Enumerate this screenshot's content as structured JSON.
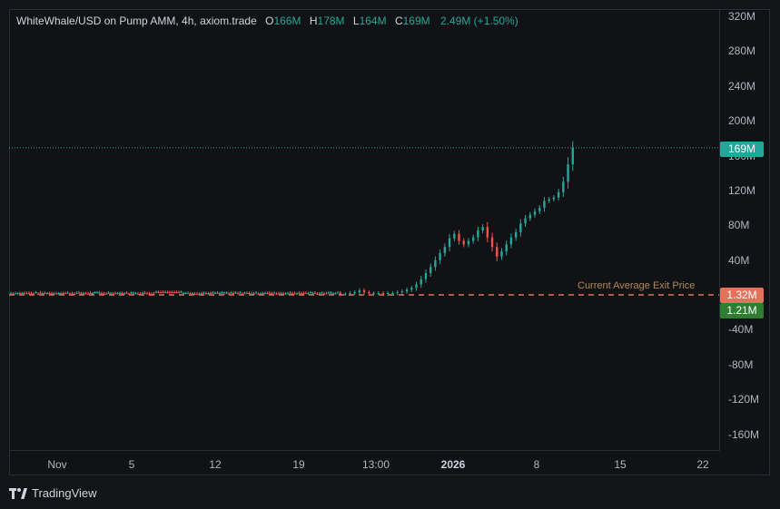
{
  "legend": {
    "symbol": "WhiteWhale/USD on Pump AMM, 4h, axiom.trade",
    "o_key": "O",
    "o_val": "166M",
    "h_key": "H",
    "h_val": "178M",
    "l_key": "L",
    "l_val": "164M",
    "c_key": "C",
    "c_val": "169M",
    "change": "2.49M (+1.50%)"
  },
  "y_axis_ticks": [
    "320M",
    "280M",
    "240M",
    "200M",
    "160M",
    "120M",
    "80M",
    "40M",
    "-40M",
    "-80M",
    "-120M",
    "-160M"
  ],
  "x_axis_ticks": [
    "Nov",
    "5",
    "12",
    "19",
    "13:00",
    "2026",
    "8",
    "15",
    "22"
  ],
  "price_tags": {
    "last": "169M",
    "avg_exit": "1.32M",
    "current": "1.21M"
  },
  "line_labels": {
    "current": "Current",
    "avg_exit": "Average Exit Price"
  },
  "colors": {
    "up": "#26a69a",
    "down": "#ef5350",
    "avg_exit_line": "#e2735a",
    "current_tag": "#2e7d32",
    "last_tag": "#26a69a"
  },
  "brand": "TradingView",
  "chart_data": {
    "type": "candlestick",
    "ylim": [
      -180,
      340
    ],
    "y_unit": "M",
    "last_price": 169,
    "avg_exit_price": 1.32,
    "current_price": 1.21,
    "grid": false,
    "series": [
      {
        "name": "WhiteWhale/USD",
        "closes_by_phase": [
          [
            0,
            1
          ],
          [
            0,
            1
          ],
          [
            0,
            2
          ],
          [
            0,
            3
          ],
          [
            0,
            5
          ],
          [
            0,
            3
          ],
          [
            0,
            2
          ],
          [
            0,
            2
          ],
          [
            0,
            2
          ],
          [
            0,
            1
          ],
          [
            0,
            2
          ],
          [
            0,
            2
          ],
          [
            0,
            3
          ],
          [
            0,
            4
          ],
          [
            0,
            6
          ],
          [
            0,
            8
          ],
          [
            0,
            12
          ],
          [
            0,
            18
          ],
          [
            0,
            25
          ],
          [
            0,
            32
          ],
          [
            0,
            40
          ],
          [
            0,
            48
          ],
          [
            0,
            55
          ],
          [
            0,
            65
          ],
          [
            0,
            70
          ],
          [
            0,
            62
          ],
          [
            0,
            58
          ],
          [
            0,
            62
          ],
          [
            0,
            66
          ],
          [
            0,
            74
          ],
          [
            0,
            78
          ],
          [
            0,
            66
          ],
          [
            0,
            55
          ],
          [
            0,
            44
          ],
          [
            0,
            50
          ],
          [
            0,
            58
          ],
          [
            0,
            66
          ],
          [
            0,
            72
          ],
          [
            0,
            82
          ],
          [
            0,
            88
          ],
          [
            0,
            92
          ],
          [
            0,
            96
          ],
          [
            0,
            100
          ],
          [
            0,
            108
          ],
          [
            0,
            110
          ],
          [
            0,
            112
          ],
          [
            0,
            118
          ],
          [
            0,
            130
          ],
          [
            0,
            150
          ],
          [
            0,
            169
          ]
        ]
      }
    ]
  }
}
